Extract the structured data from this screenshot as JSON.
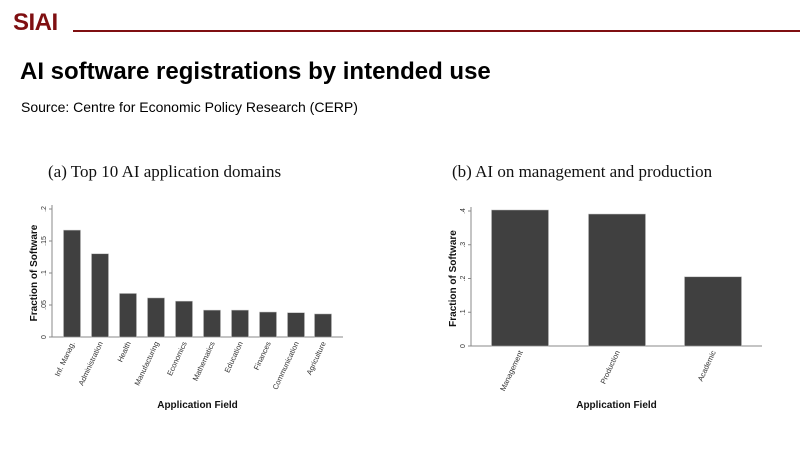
{
  "header": {
    "logo": "SIAI",
    "title": "AI software registrations by intended use",
    "source": "Source: Centre for Economic Policy Research (CERP)"
  },
  "colors": {
    "brand": "#7f0f11",
    "bar": "#404040"
  },
  "chart_data": [
    {
      "type": "bar",
      "title": "(a) Top 10 AI application domains",
      "xlabel": "Application Field",
      "ylabel": "Fraction of Software",
      "ylim": [
        0,
        0.2
      ],
      "yticks": [
        0,
        0.05,
        0.1,
        0.15,
        0.2
      ],
      "ytick_labels": [
        "0",
        ".05",
        ".1",
        ".15",
        ".2"
      ],
      "categories": [
        "Inf. Manag.",
        "Administration",
        "Health",
        "Manufacturing",
        "Economics",
        "Mathematics",
        "Education",
        "Finances",
        "Communication",
        "Agriculture"
      ],
      "values": [
        0.167,
        0.13,
        0.068,
        0.061,
        0.056,
        0.042,
        0.042,
        0.039,
        0.038,
        0.036
      ],
      "grid": false
    },
    {
      "type": "bar",
      "title": "(b) AI on management and production",
      "xlabel": "Application Field",
      "ylabel": "Fraction of Software",
      "ylim": [
        0,
        0.4
      ],
      "yticks": [
        0,
        0.1,
        0.2,
        0.3,
        0.4
      ],
      "ytick_labels": [
        "0",
        ".1",
        ".2",
        ".3",
        ".4"
      ],
      "categories": [
        "Management",
        "Production",
        "Academic"
      ],
      "values": [
        0.403,
        0.391,
        0.205
      ],
      "grid": false
    }
  ]
}
